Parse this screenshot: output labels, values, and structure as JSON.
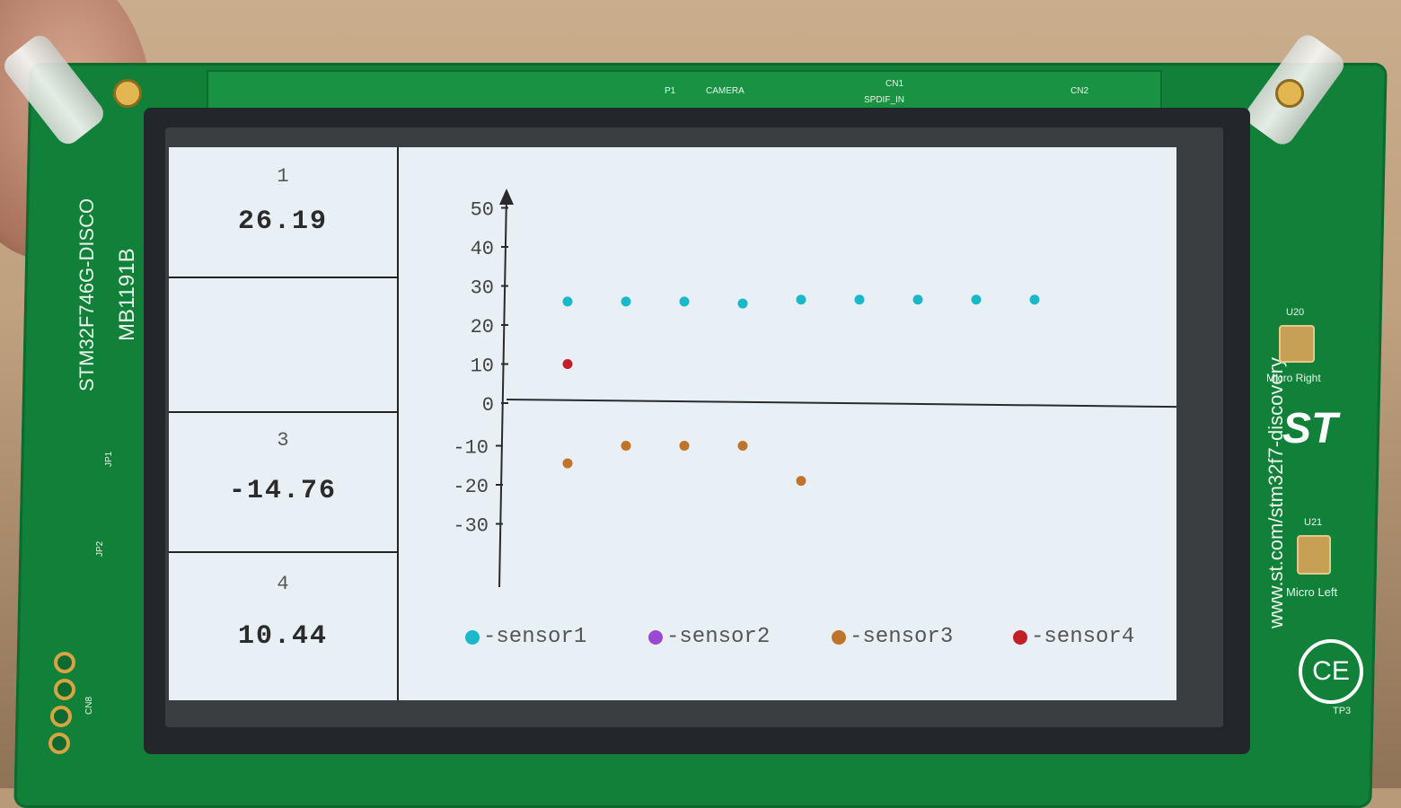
{
  "board": {
    "model": "STM32F746G-DISCO",
    "rev": "MB1191B",
    "url": "www.st.com/stm32f7-discovery",
    "labels": {
      "p1": "P1",
      "camera": "CAMERA",
      "cn1": "CN1",
      "spdif": "SPDIF_IN",
      "cn2": "CN2",
      "u20": "U20",
      "micro_right": "Micro Right",
      "u21": "U21",
      "micro_left": "Micro Left",
      "tp3": "TP3",
      "jp1": "JP1",
      "jp2": "JP2",
      "cn8": "CN8"
    },
    "st_logo": "ST",
    "ce_mark": "CE"
  },
  "left_panel": {
    "cells": [
      {
        "index": "1",
        "value": "26.19"
      },
      {
        "index": "",
        "value": ""
      },
      {
        "index": "3",
        "value": "-14.76"
      },
      {
        "index": "4",
        "value": "10.44"
      }
    ]
  },
  "chart_data": {
    "type": "scatter",
    "ylim": [
      -30,
      50
    ],
    "yticks": [
      "50",
      "40",
      "30",
      "20",
      "10",
      "0",
      "-10",
      "-20",
      "-30"
    ],
    "series": [
      {
        "name": "-sensor1",
        "color": "#1ab8c8",
        "values": [
          26,
          26,
          26,
          25.5,
          26.5,
          26.5,
          26.5,
          26.5,
          26.5
        ]
      },
      {
        "name": "-sensor2",
        "color": "#9a4ad0",
        "values": []
      },
      {
        "name": "-sensor3",
        "color": "#c0732a",
        "values": [
          -14.5,
          -10,
          -10,
          -10,
          -19
        ]
      },
      {
        "name": "-sensor4",
        "color": "#c21f2b",
        "values": [
          10
        ]
      }
    ]
  }
}
